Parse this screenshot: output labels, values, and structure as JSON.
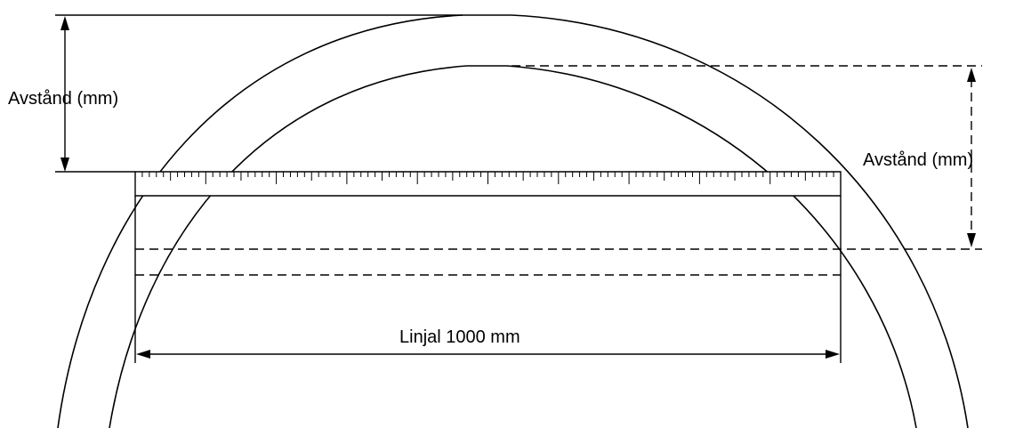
{
  "labels": {
    "distance_left": "Avstånd (mm)",
    "distance_right": "Avstånd (mm)",
    "ruler_length": "Linjal 1000 mm"
  },
  "colors": {
    "stroke": "#000000",
    "background": "#ffffff"
  }
}
